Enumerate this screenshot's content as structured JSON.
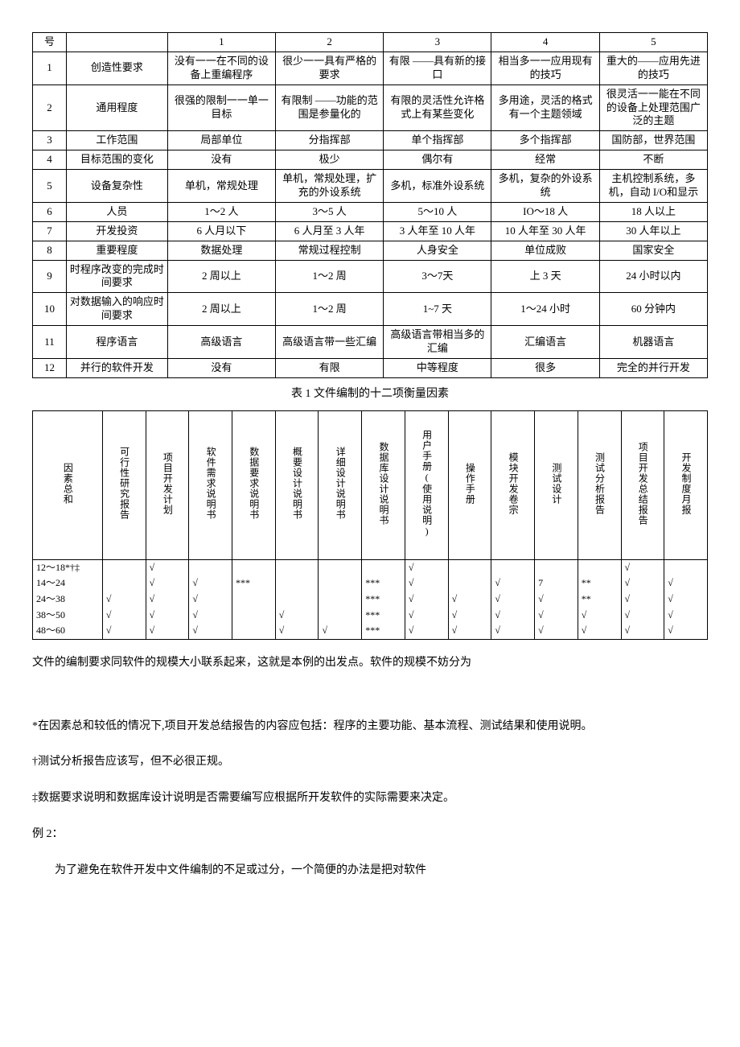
{
  "table1": {
    "header": [
      "号",
      "",
      "1",
      "2",
      "3",
      "4",
      "5"
    ],
    "rows": [
      [
        "1",
        "创造性要求",
        "没有一一在不同的设备上重编程序",
        "很少一一具有严格的要求",
        "有限 ——具有新的接口",
        "相当多一一应用现有的技巧",
        "重大的——应用先进的技巧"
      ],
      [
        "2",
        "通用程度",
        "很强的限制一一单一目标",
        "有限制 ——功能的范围是参量化的",
        "有限的灵活性允许格式上有某些变化",
        "多用途，灵活的格式有一个主题领域",
        "很灵活一一能在不同的设备上处理范围广泛的主题"
      ],
      [
        "3",
        "工作范围",
        "局部单位",
        "分指挥部",
        "单个指挥部",
        "多个指挥部",
        "国防部，世界范围"
      ],
      [
        "4",
        "目标范围的变化",
        "没有",
        "极少",
        "偶尔有",
        "经常",
        "不断"
      ],
      [
        "5",
        "设备复杂性",
        "单机，常规处理",
        "单机，常规处理，扩充的外设系统",
        "多机，标准外设系统",
        "多机，复杂的外设系统",
        "主机控制系统，多机，自动 I/O和显示"
      ],
      [
        "6",
        "人员",
        "1～2 人",
        "3～5 人",
        "5～10 人",
        "IO～18 人",
        "18 人以上"
      ],
      [
        "7",
        "开发投资",
        "6 人月以下",
        "6 人月至 3 人年",
        "3 人年至 10 人年",
        "10 人年至 30 人年",
        "30 人年以上"
      ],
      [
        "8",
        "重要程度",
        "数据处理",
        "常规过程控制",
        "人身安全",
        "单位成败",
        "国家安全"
      ],
      [
        "9",
        "时程序改变的完成时间要求",
        "2 周以上",
        "1～2 周",
        "3～7天",
        "上 3 天",
        "24 小时以内"
      ],
      [
        "10",
        "对数据输入的响应时间要求",
        "2 周以上",
        "1～2 周",
        "1~7 天",
        "1～24 小时",
        "60 分钟内"
      ],
      [
        "11",
        "程序语言",
        "高级语言",
        "高级语言带一些汇编",
        "高级语言带相当多的汇编",
        "汇编语言",
        "机器语言"
      ],
      [
        "12",
        "并行的软件开发",
        "没有",
        "有限",
        "中等程度",
        "很多",
        "完全的并行开发"
      ]
    ]
  },
  "caption1": "表 1 文件编制的十二项衡量因素",
  "table2": {
    "headers": [
      "因素总和",
      "可行性研究报告",
      "项目开发计划",
      "软件需求说明书",
      "数据要求说明书",
      "概要设计说明书",
      "详细设计说明书",
      "数据库设计说明书",
      "用户手册(使用说明)",
      "操作手册",
      "模块开发卷宗",
      "测试设计",
      "测试分析报告",
      "项目开发总结报告",
      "开发制度月报"
    ],
    "rows": [
      [
        "12～18*†‡",
        "",
        "√",
        "",
        "",
        "",
        "",
        "",
        "√",
        "",
        "",
        "",
        "",
        "√",
        ""
      ],
      [
        "14～24",
        "",
        "√",
        "√",
        "***",
        "",
        "",
        "***",
        "√",
        "",
        "√",
        "7",
        "**",
        "√",
        "√"
      ],
      [
        "24～38",
        "√",
        "√",
        "√",
        "",
        "",
        "",
        "***",
        "√",
        "√",
        "√",
        "√",
        "**",
        "√",
        "√"
      ],
      [
        "38～50",
        "√",
        "√",
        "√",
        "",
        "√",
        "",
        "***",
        "√",
        "√",
        "√",
        "√",
        "√",
        "√",
        "√"
      ],
      [
        "48～60",
        "√",
        "√",
        "√",
        "",
        "√",
        "√",
        "***",
        "√",
        "√",
        "√",
        "√",
        "√",
        "√",
        "√"
      ]
    ]
  },
  "paragraphs": {
    "p1": "文件的编制要求同软件的规模大小联系起来，这就是本例的出发点。软件的规模不妨分为",
    "p2": "*在因素总和较低的情况下,项目开发总结报告的内容应包括：程序的主要功能、基本流程、测试结果和使用说明。",
    "p3": "†测试分析报告应该写，但不必很正规。",
    "p4": "‡数据要求说明和数据库设计说明是否需要编写应根据所开发软件的实际需要来决定。",
    "p5": "例 2：",
    "p6": "为了避免在软件开发中文件编制的不足或过分，一个简便的办法是把对软件"
  }
}
